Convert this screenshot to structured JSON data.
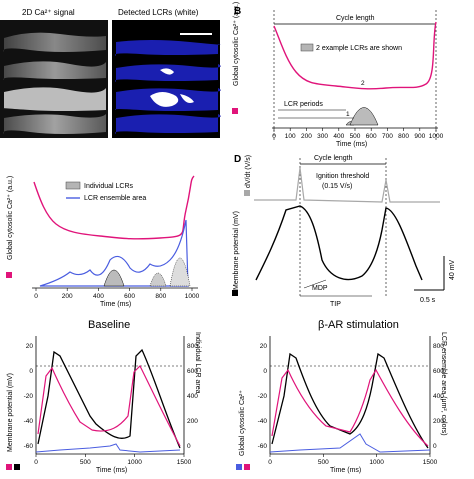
{
  "panelA": {
    "label_left": "2D Ca²⁺ signal",
    "label_right": "Detected LCRs (white)"
  },
  "panelB": {
    "letter": "B",
    "cycle_length": "Cycle length",
    "legend": "2 example LCRs are shown",
    "ylabel": "Global cytosolic Ca²⁺ (a.u.)",
    "lcr_periods": "LCR periods",
    "xlabel": "Time (ms)",
    "xticks": [
      "0",
      "100",
      "200",
      "300",
      "400",
      "500",
      "600",
      "700",
      "800",
      "900",
      "1000"
    ],
    "lcr_numbers": [
      "1",
      "2"
    ]
  },
  "panelC": {
    "ylabel": "Global cytosolic Ca²⁺ (a.u.)",
    "legend_lcrs": "Individual LCRs",
    "legend_ensemble": "LCR ensemble area",
    "xlabel": "Time (ms)",
    "xticks": [
      "0",
      "200",
      "400",
      "600",
      "800",
      "1000"
    ]
  },
  "panelD": {
    "letter": "D",
    "cycle_length": "Cycle length",
    "dvdt_label": "dV/dt (V/s)",
    "ignition": "Ignition threshold",
    "ignition_value": "(0.15 V/s)",
    "membrane_label": "Membrane potential (mV)",
    "scale_v": "40 mV",
    "scale_t": "0.5 s",
    "mdp": "MDP",
    "tip": "TIP"
  },
  "panelE": {
    "title_left": "Baseline",
    "title_right": "β-AR stimulation",
    "left_axis": "Membrane potential (mV)",
    "left_axis2": "Global cytosolic Ca²⁺",
    "right_axis": "Individual LCR area",
    "right_axis2": "LCR ensemble area (μm², colors)",
    "yticks_left": [
      "20",
      "0",
      "-20",
      "-40",
      "-60"
    ],
    "yticks_right": [
      "800",
      "600",
      "400",
      "200",
      "0"
    ],
    "xticks_base": [
      "0",
      "500",
      "1000",
      "1500"
    ],
    "xticks_beta": [
      "0",
      "500",
      "1000",
      "1500"
    ],
    "xlabel": "Time (ms)"
  },
  "colors": {
    "magenta": "#e0147a",
    "blue": "#4a5de0",
    "gray": "#a8a8a8",
    "dark_blue_bg": "#1a1fb0"
  }
}
